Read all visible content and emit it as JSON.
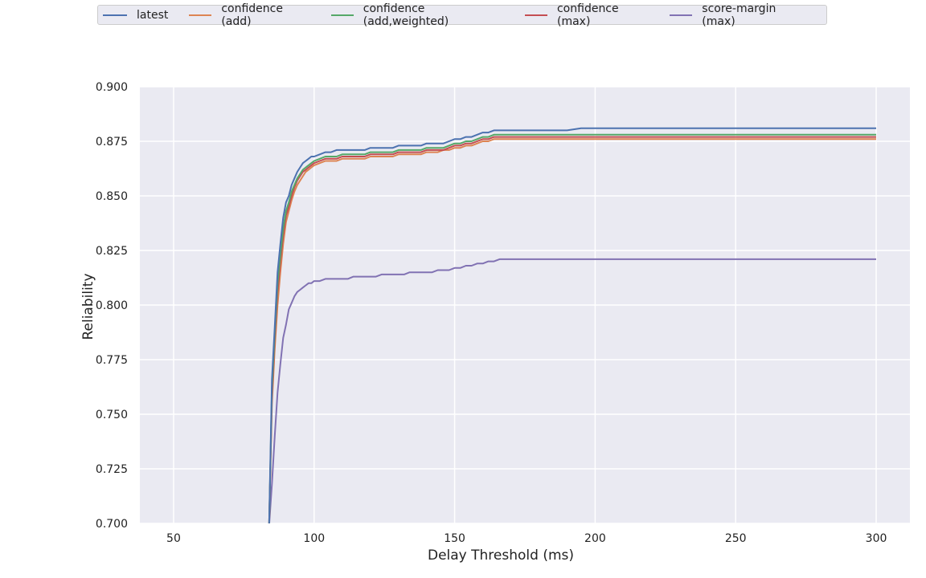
{
  "chart_data": {
    "type": "line",
    "title": "",
    "xlabel": "Delay Threshold (ms)",
    "ylabel": "Reliability",
    "xlim": [
      38,
      312
    ],
    "ylim": [
      0.7,
      0.9
    ],
    "xticks": [
      50,
      100,
      150,
      200,
      250,
      300
    ],
    "yticks": [
      0.7,
      0.725,
      0.75,
      0.775,
      0.8,
      0.825,
      0.85,
      0.875,
      0.9
    ],
    "xtick_labels": [
      "50",
      "100",
      "150",
      "200",
      "250",
      "300"
    ],
    "ytick_labels": [
      "0.700",
      "0.725",
      "0.750",
      "0.775",
      "0.800",
      "0.825",
      "0.850",
      "0.875",
      "0.900"
    ],
    "grid": true,
    "legend_position": "top",
    "x": [
      84,
      85,
      86,
      87,
      88,
      89,
      90,
      91,
      92,
      93,
      94,
      95,
      96,
      97,
      98,
      99,
      100,
      102,
      104,
      106,
      108,
      110,
      112,
      114,
      116,
      118,
      120,
      122,
      124,
      126,
      128,
      130,
      132,
      134,
      136,
      138,
      140,
      142,
      144,
      146,
      148,
      150,
      152,
      154,
      156,
      158,
      160,
      162,
      164,
      166,
      168,
      170,
      175,
      180,
      185,
      190,
      195,
      200,
      250,
      300
    ],
    "series": [
      {
        "name": "latest",
        "color": "#4c72b0",
        "values": [
          0.699,
          0.766,
          0.79,
          0.815,
          0.828,
          0.84,
          0.847,
          0.85,
          0.855,
          0.858,
          0.861,
          0.863,
          0.865,
          0.866,
          0.867,
          0.868,
          0.868,
          0.869,
          0.87,
          0.87,
          0.871,
          0.871,
          0.871,
          0.871,
          0.871,
          0.871,
          0.872,
          0.872,
          0.872,
          0.872,
          0.872,
          0.873,
          0.873,
          0.873,
          0.873,
          0.873,
          0.874,
          0.874,
          0.874,
          0.874,
          0.875,
          0.876,
          0.876,
          0.877,
          0.877,
          0.878,
          0.879,
          0.879,
          0.88,
          0.88,
          0.88,
          0.88,
          0.88,
          0.88,
          0.88,
          0.88,
          0.881,
          0.881,
          0.881,
          0.881
        ]
      },
      {
        "name": "confidence (add)",
        "color": "#dd8452",
        "values": [
          0.699,
          0.755,
          0.78,
          0.8,
          0.815,
          0.828,
          0.838,
          0.843,
          0.848,
          0.852,
          0.855,
          0.857,
          0.859,
          0.861,
          0.862,
          0.863,
          0.864,
          0.865,
          0.866,
          0.866,
          0.866,
          0.867,
          0.867,
          0.867,
          0.867,
          0.867,
          0.868,
          0.868,
          0.868,
          0.868,
          0.868,
          0.869,
          0.869,
          0.869,
          0.869,
          0.869,
          0.87,
          0.87,
          0.87,
          0.871,
          0.871,
          0.872,
          0.872,
          0.873,
          0.873,
          0.874,
          0.875,
          0.875,
          0.876,
          0.876,
          0.876,
          0.876,
          0.876,
          0.876,
          0.876,
          0.876,
          0.876,
          0.876,
          0.876,
          0.876
        ]
      },
      {
        "name": "confidence (add,weighted)",
        "color": "#55a868",
        "values": [
          0.699,
          0.762,
          0.787,
          0.81,
          0.823,
          0.835,
          0.843,
          0.847,
          0.852,
          0.855,
          0.858,
          0.86,
          0.862,
          0.863,
          0.864,
          0.865,
          0.866,
          0.867,
          0.868,
          0.868,
          0.868,
          0.869,
          0.869,
          0.869,
          0.869,
          0.869,
          0.87,
          0.87,
          0.87,
          0.87,
          0.87,
          0.871,
          0.871,
          0.871,
          0.871,
          0.871,
          0.872,
          0.872,
          0.872,
          0.872,
          0.873,
          0.874,
          0.874,
          0.875,
          0.875,
          0.876,
          0.877,
          0.877,
          0.878,
          0.878,
          0.878,
          0.878,
          0.878,
          0.878,
          0.878,
          0.878,
          0.878,
          0.878,
          0.878,
          0.878
        ]
      },
      {
        "name": "confidence (max)",
        "color": "#c44e52",
        "values": [
          0.699,
          0.758,
          0.784,
          0.806,
          0.82,
          0.832,
          0.841,
          0.845,
          0.85,
          0.854,
          0.857,
          0.859,
          0.861,
          0.862,
          0.863,
          0.864,
          0.865,
          0.866,
          0.867,
          0.867,
          0.867,
          0.868,
          0.868,
          0.868,
          0.868,
          0.868,
          0.869,
          0.869,
          0.869,
          0.869,
          0.869,
          0.87,
          0.87,
          0.87,
          0.87,
          0.87,
          0.871,
          0.871,
          0.871,
          0.871,
          0.872,
          0.873,
          0.873,
          0.874,
          0.874,
          0.875,
          0.876,
          0.876,
          0.877,
          0.877,
          0.877,
          0.877,
          0.877,
          0.877,
          0.877,
          0.877,
          0.877,
          0.877,
          0.877,
          0.877
        ]
      },
      {
        "name": "score-margin (max)",
        "color": "#8172b3",
        "values": [
          0.699,
          0.718,
          0.74,
          0.76,
          0.773,
          0.785,
          0.791,
          0.798,
          0.801,
          0.804,
          0.806,
          0.807,
          0.808,
          0.809,
          0.81,
          0.81,
          0.811,
          0.811,
          0.812,
          0.812,
          0.812,
          0.812,
          0.812,
          0.813,
          0.813,
          0.813,
          0.813,
          0.813,
          0.814,
          0.814,
          0.814,
          0.814,
          0.814,
          0.815,
          0.815,
          0.815,
          0.815,
          0.815,
          0.816,
          0.816,
          0.816,
          0.817,
          0.817,
          0.818,
          0.818,
          0.819,
          0.819,
          0.82,
          0.82,
          0.821,
          0.821,
          0.821,
          0.821,
          0.821,
          0.821,
          0.821,
          0.821,
          0.821,
          0.821,
          0.821
        ]
      }
    ]
  }
}
